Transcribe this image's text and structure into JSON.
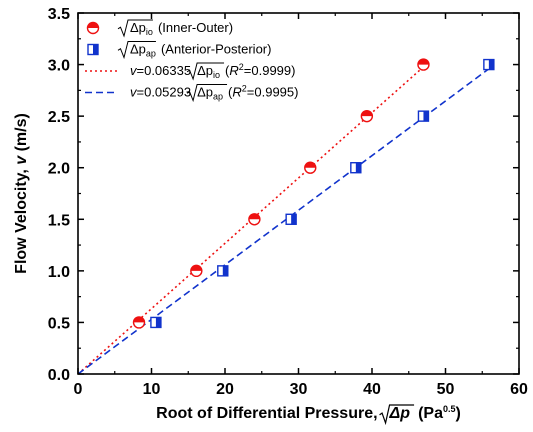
{
  "chart_data": {
    "type": "scatter",
    "xlabel_main": "Root of Differential Pressure,",
    "xlabel_sqrt": "Δp",
    "xlabel_unit": "(Pa",
    "xlabel_unit_sup": "0.5",
    "xlabel_unit_close": ")",
    "ylabel_main": "Flow Velocity, ",
    "ylabel_var": "v",
    "ylabel_unit": " (m/s)",
    "xlim": [
      0,
      60
    ],
    "ylim": [
      0,
      3.5
    ],
    "x_ticks": [
      0,
      10,
      20,
      30,
      40,
      50,
      60
    ],
    "x_tick_labels": [
      "0",
      "10",
      "20",
      "30",
      "40",
      "50",
      "60"
    ],
    "y_ticks": [
      0,
      0.5,
      1.0,
      1.5,
      2.0,
      2.5,
      3.0,
      3.5
    ],
    "y_tick_labels": [
      "0.0",
      "0.5",
      "1.0",
      "1.5",
      "2.0",
      "2.5",
      "3.0",
      "3.5"
    ],
    "series": [
      {
        "name_sqrt": "Δp",
        "name_sub": "io",
        "name_rest": "(Inner-Outer)",
        "color": "#ee1111",
        "marker": "half-circle",
        "x": [
          8.3,
          16.1,
          24.0,
          31.6,
          39.3,
          47.0
        ],
        "y": [
          0.5,
          1.0,
          1.5,
          2.0,
          2.5,
          3.0
        ]
      },
      {
        "name_sqrt": "Δp",
        "name_sub": "ap",
        "name_rest": "(Anterior-Posterior)",
        "color": "#1133cc",
        "marker": "half-square",
        "x": [
          10.6,
          19.7,
          29.0,
          37.8,
          47.0,
          55.9
        ],
        "y": [
          0.5,
          1.0,
          1.5,
          2.0,
          2.5,
          3.0
        ]
      }
    ],
    "fits": [
      {
        "var": "v",
        "eq": "=0.06335",
        "sqrt": "Δp",
        "sub": "io",
        "r2_open": "(",
        "r2_var": "R",
        "r2_sup": "2",
        "r2_val": "=0.9999)",
        "slope": 0.06335,
        "color": "#ee1111",
        "style": "dotted"
      },
      {
        "var": "v",
        "eq": "=0.05293",
        "sqrt": "Δp",
        "sub": "ap",
        "r2_open": "(",
        "r2_var": "R",
        "r2_sup": "2",
        "r2_val": "=0.9995)",
        "slope": 0.05293,
        "color": "#1133cc",
        "style": "dashed"
      }
    ],
    "legend_position": "top-left"
  }
}
